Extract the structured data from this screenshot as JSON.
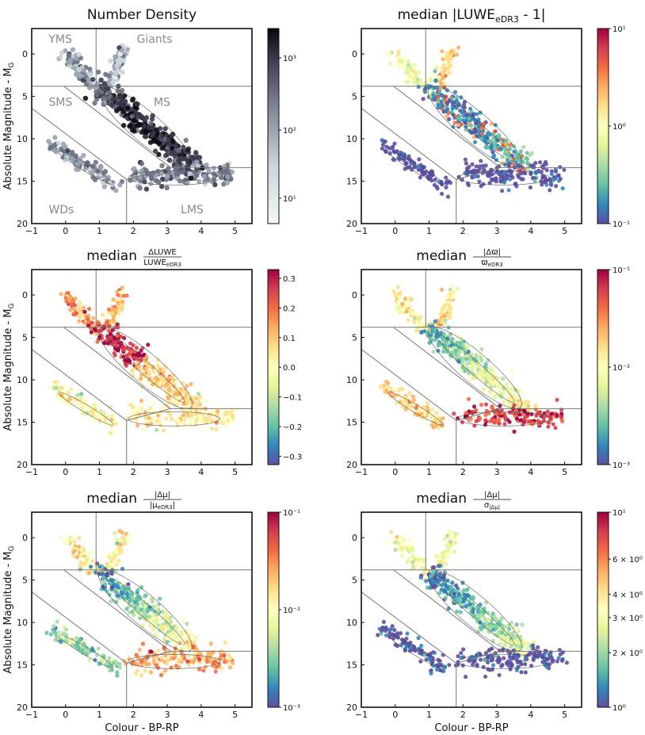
{
  "figure": {
    "shared": {
      "xlabel": "Colour - BP-RP",
      "ylabel": "Absolute Magnitude - M",
      "ylabel_sub": "G",
      "xlim": [
        -1,
        5.5
      ],
      "ylim": [
        20,
        -3
      ],
      "xticks": [
        -1,
        0,
        1,
        2,
        3,
        4,
        5
      ],
      "yticks": [
        0,
        5,
        10,
        15,
        20
      ],
      "region_lines": {
        "horizontal_upper_y": 3.8,
        "vertical_top_x": 0.9,
        "lower_right_y": 13.4,
        "lower_divider_x": 1.8
      },
      "region_labels": [
        "YMS",
        "Giants",
        "SMS",
        "MS",
        "WDs",
        "LMS"
      ]
    },
    "panels": [
      {
        "id": "number-density",
        "title": "Number Density",
        "title_parts": {
          "main": "Number Density"
        },
        "colormap": "grey",
        "scale": "log",
        "colorbar_ticks": [
          "10³",
          "10²",
          "10¹"
        ],
        "show_region_labels": true,
        "xlabel_shown": false,
        "ylabel_shown": true
      },
      {
        "id": "luwe",
        "title": "median |LUWE_eDR3 - 1|",
        "title_parts": {
          "prefix": "median |LUWE",
          "sub": "eDR3",
          "suffix": " - 1|"
        },
        "colormap": "spectral",
        "scale": "log",
        "colorbar_ticks": [
          "10¹",
          "10⁰",
          "10⁻¹"
        ],
        "show_region_labels": false,
        "xlabel_shown": false,
        "ylabel_shown": false
      },
      {
        "id": "delta-luwe",
        "title": "median ΔLUWE / LUWE_eDR3",
        "title_parts": {
          "prefix": "median",
          "num": "ΔLUWE",
          "den": "LUWE",
          "den_sub": "eDR3"
        },
        "colormap": "spectral",
        "scale": "linear",
        "colorbar_ticks": [
          "0.3",
          "0.2",
          "0.1",
          "0.0",
          "−0.1",
          "−0.2",
          "−0.3"
        ],
        "show_region_labels": false,
        "xlabel_shown": false,
        "ylabel_shown": true
      },
      {
        "id": "delta-parallax",
        "title": "median |Δϖ| / ϖ_eDR3",
        "title_parts": {
          "prefix": "median",
          "num": "|Δϖ|",
          "den": "ϖ",
          "den_sub": "eDR3"
        },
        "colormap": "spectral",
        "scale": "log",
        "colorbar_ticks": [
          "10⁻¹",
          "10⁻²",
          "10⁻³"
        ],
        "show_region_labels": false,
        "xlabel_shown": false,
        "ylabel_shown": false
      },
      {
        "id": "delta-pm",
        "title": "median |Δμ| / |μ_eDR3|",
        "title_parts": {
          "prefix": "median",
          "num": "|Δμ|",
          "den": "|μ",
          "den_sub": "eDR3",
          "den_suffix": "|"
        },
        "colormap": "spectral",
        "scale": "log",
        "colorbar_ticks": [
          "10⁻¹",
          "10⁻²",
          "10⁻³"
        ],
        "show_region_labels": false,
        "xlabel_shown": true,
        "ylabel_shown": true
      },
      {
        "id": "delta-pm-sigma",
        "title": "median |Δμ| / σ_|Δμ|",
        "title_parts": {
          "prefix": "median",
          "num": "|Δμ|",
          "den": "σ",
          "den_sub": "|Δμ|"
        },
        "colormap": "spectral",
        "scale": "log",
        "colorbar_ticks": [
          "10¹",
          "6 × 10⁰",
          "4 × 10⁰",
          "3 × 10⁰",
          "2 × 10⁰",
          "10⁰"
        ],
        "show_region_labels": false,
        "xlabel_shown": true,
        "ylabel_shown": false
      }
    ]
  },
  "chart_data": [
    {
      "type": "heatmap",
      "title": "Number Density",
      "xlabel": "",
      "ylabel": "Absolute Magnitude - M_G",
      "xlim": [
        -1,
        5.5
      ],
      "ylim": [
        20,
        -3
      ],
      "colorbar": {
        "scale": "log",
        "range": [
          3,
          3000
        ],
        "ticks": [
          10,
          100,
          1000
        ]
      },
      "regions": [
        "YMS",
        "Giants",
        "SMS",
        "MS",
        "WDs",
        "LMS"
      ]
    },
    {
      "type": "heatmap",
      "title": "median |LUWE_eDR3 - 1|",
      "xlim": [
        -1,
        5.5
      ],
      "ylim": [
        20,
        -3
      ],
      "colorbar": {
        "scale": "log",
        "range": [
          0.1,
          10
        ],
        "ticks": [
          0.1,
          1,
          10
        ]
      }
    },
    {
      "type": "heatmap",
      "title": "median ΔLUWE / LUWE_eDR3",
      "ylabel": "Absolute Magnitude - M_G",
      "xlim": [
        -1,
        5.5
      ],
      "ylim": [
        20,
        -3
      ],
      "colorbar": {
        "scale": "linear",
        "range": [
          -0.33,
          0.33
        ],
        "ticks": [
          -0.3,
          -0.2,
          -0.1,
          0.0,
          0.1,
          0.2,
          0.3
        ]
      }
    },
    {
      "type": "heatmap",
      "title": "median |Δϖ| / ϖ_eDR3",
      "xlim": [
        -1,
        5.5
      ],
      "ylim": [
        20,
        -3
      ],
      "colorbar": {
        "scale": "log",
        "range": [
          0.001,
          0.1
        ],
        "ticks": [
          0.001,
          0.01,
          0.1
        ]
      }
    },
    {
      "type": "heatmap",
      "title": "median |Δμ| / |μ_eDR3|",
      "xlabel": "Colour - BP-RP",
      "ylabel": "Absolute Magnitude - M_G",
      "xlim": [
        -1,
        5.5
      ],
      "ylim": [
        20,
        -3
      ],
      "colorbar": {
        "scale": "log",
        "range": [
          0.001,
          0.1
        ],
        "ticks": [
          0.001,
          0.01,
          0.1
        ]
      }
    },
    {
      "type": "heatmap",
      "title": "median |Δμ| / σ_|Δμ|",
      "xlabel": "Colour - BP-RP",
      "xlim": [
        -1,
        5.5
      ],
      "ylim": [
        20,
        -3
      ],
      "colorbar": {
        "scale": "log",
        "range": [
          1,
          10
        ],
        "ticks": [
          1,
          2,
          3,
          4,
          6,
          10
        ]
      }
    }
  ]
}
